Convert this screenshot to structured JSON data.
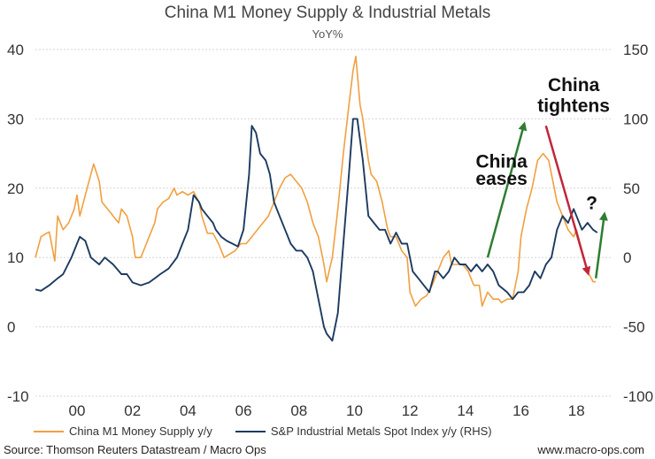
{
  "chart_data": {
    "type": "line",
    "title": "China M1 Money Supply & Industrial Metals",
    "subtitle": "YoY%",
    "x_range": [
      1998.5,
      2019.3
    ],
    "x_ticks": [
      {
        "v": 2000,
        "label": "00"
      },
      {
        "v": 2002,
        "label": "02"
      },
      {
        "v": 2004,
        "label": "04"
      },
      {
        "v": 2006,
        "label": "06"
      },
      {
        "v": 2008,
        "label": "08"
      },
      {
        "v": 2010,
        "label": "10"
      },
      {
        "v": 2012,
        "label": "12"
      },
      {
        "v": 2014,
        "label": "14"
      },
      {
        "v": 2016,
        "label": "16"
      },
      {
        "v": 2018,
        "label": "18"
      }
    ],
    "y_left": {
      "range": [
        -10,
        40
      ],
      "ticks": [
        -10,
        0,
        10,
        20,
        30,
        40
      ]
    },
    "y_right": {
      "range": [
        -100,
        150
      ],
      "ticks": [
        -100,
        -50,
        0,
        50,
        100,
        150
      ]
    },
    "series": [
      {
        "name": "China M1 Money Supply y/y",
        "axis": "left",
        "color": "#f0a040",
        "points": [
          [
            1998.5,
            10
          ],
          [
            1998.7,
            13
          ],
          [
            1998.9,
            13.5
          ],
          [
            1999.0,
            13.7
          ],
          [
            1999.2,
            9.5
          ],
          [
            1999.3,
            16
          ],
          [
            1999.5,
            14
          ],
          [
            1999.7,
            15
          ],
          [
            1999.9,
            17
          ],
          [
            2000.0,
            19
          ],
          [
            2000.1,
            16
          ],
          [
            2000.3,
            19
          ],
          [
            2000.5,
            22
          ],
          [
            2000.6,
            23.5
          ],
          [
            2000.8,
            21
          ],
          [
            2000.9,
            18
          ],
          [
            2001.1,
            17
          ],
          [
            2001.3,
            16
          ],
          [
            2001.5,
            15
          ],
          [
            2001.6,
            17
          ],
          [
            2001.8,
            16
          ],
          [
            2002.0,
            13
          ],
          [
            2002.1,
            10
          ],
          [
            2002.3,
            10
          ],
          [
            2002.5,
            12
          ],
          [
            2002.6,
            13
          ],
          [
            2002.8,
            15
          ],
          [
            2002.9,
            17
          ],
          [
            2003.1,
            18
          ],
          [
            2003.3,
            18.5
          ],
          [
            2003.5,
            20
          ],
          [
            2003.6,
            19
          ],
          [
            2003.8,
            19.5
          ],
          [
            2004.0,
            19
          ],
          [
            2004.2,
            19.5
          ],
          [
            2004.4,
            18
          ],
          [
            2004.5,
            16
          ],
          [
            2004.7,
            13.5
          ],
          [
            2004.9,
            13.5
          ],
          [
            2005.1,
            12
          ],
          [
            2005.3,
            10
          ],
          [
            2005.5,
            10.5
          ],
          [
            2005.7,
            11
          ],
          [
            2005.9,
            12
          ],
          [
            2006.1,
            12
          ],
          [
            2006.3,
            13
          ],
          [
            2006.5,
            14
          ],
          [
            2006.7,
            15
          ],
          [
            2006.9,
            16
          ],
          [
            2007.1,
            18
          ],
          [
            2007.3,
            20
          ],
          [
            2007.5,
            21.5
          ],
          [
            2007.7,
            22
          ],
          [
            2007.9,
            21
          ],
          [
            2008.1,
            20
          ],
          [
            2008.3,
            18
          ],
          [
            2008.5,
            15
          ],
          [
            2008.7,
            13
          ],
          [
            2008.9,
            9
          ],
          [
            2009.0,
            6.5
          ],
          [
            2009.2,
            10
          ],
          [
            2009.4,
            17
          ],
          [
            2009.6,
            25
          ],
          [
            2009.8,
            32
          ],
          [
            2009.95,
            37
          ],
          [
            2010.05,
            39
          ],
          [
            2010.2,
            32
          ],
          [
            2010.3,
            30
          ],
          [
            2010.5,
            24
          ],
          [
            2010.6,
            22
          ],
          [
            2010.8,
            21
          ],
          [
            2011.0,
            18
          ],
          [
            2011.2,
            14
          ],
          [
            2011.3,
            13
          ],
          [
            2011.5,
            13
          ],
          [
            2011.7,
            11
          ],
          [
            2011.9,
            10
          ],
          [
            2012.0,
            5
          ],
          [
            2012.2,
            3
          ],
          [
            2012.4,
            4
          ],
          [
            2012.6,
            4.5
          ],
          [
            2012.8,
            6
          ],
          [
            2013.0,
            8
          ],
          [
            2013.2,
            10
          ],
          [
            2013.4,
            11
          ],
          [
            2013.5,
            9
          ],
          [
            2013.7,
            9
          ],
          [
            2013.9,
            9
          ],
          [
            2014.1,
            8
          ],
          [
            2014.3,
            6
          ],
          [
            2014.5,
            6
          ],
          [
            2014.6,
            3
          ],
          [
            2014.8,
            5
          ],
          [
            2015.0,
            4
          ],
          [
            2015.2,
            4
          ],
          [
            2015.3,
            3.5
          ],
          [
            2015.5,
            4
          ],
          [
            2015.7,
            4
          ],
          [
            2015.9,
            8
          ],
          [
            2016.0,
            13
          ],
          [
            2016.2,
            17
          ],
          [
            2016.4,
            20
          ],
          [
            2016.5,
            22
          ],
          [
            2016.6,
            24
          ],
          [
            2016.8,
            25
          ],
          [
            2017.0,
            24
          ],
          [
            2017.2,
            20
          ],
          [
            2017.3,
            18
          ],
          [
            2017.5,
            16
          ],
          [
            2017.7,
            14
          ],
          [
            2017.9,
            13
          ],
          [
            2018.0,
            14
          ],
          [
            2018.2,
            11
          ],
          [
            2018.4,
            8
          ],
          [
            2018.6,
            6.5
          ],
          [
            2018.7,
            6.5
          ]
        ]
      },
      {
        "name": "S&P Industrial Metals Spot Index y/y (RHS)",
        "axis": "right",
        "color": "#1c3a60",
        "points": [
          [
            1998.5,
            -23
          ],
          [
            1998.7,
            -24
          ],
          [
            1999.0,
            -20
          ],
          [
            1999.3,
            -15
          ],
          [
            1999.5,
            -12
          ],
          [
            1999.8,
            0
          ],
          [
            2000.0,
            10
          ],
          [
            2000.1,
            15
          ],
          [
            2000.3,
            12
          ],
          [
            2000.5,
            0
          ],
          [
            2000.8,
            -5
          ],
          [
            2001.0,
            0
          ],
          [
            2001.3,
            -5
          ],
          [
            2001.6,
            -12
          ],
          [
            2001.8,
            -12
          ],
          [
            2002.0,
            -18
          ],
          [
            2002.3,
            -20
          ],
          [
            2002.6,
            -18
          ],
          [
            2002.8,
            -15
          ],
          [
            2003.0,
            -12
          ],
          [
            2003.3,
            -8
          ],
          [
            2003.6,
            0
          ],
          [
            2003.8,
            10
          ],
          [
            2004.0,
            20
          ],
          [
            2004.2,
            45
          ],
          [
            2004.4,
            40
          ],
          [
            2004.5,
            35
          ],
          [
            2004.7,
            30
          ],
          [
            2004.9,
            25
          ],
          [
            2005.0,
            20
          ],
          [
            2005.2,
            15
          ],
          [
            2005.4,
            12
          ],
          [
            2005.6,
            10
          ],
          [
            2005.8,
            8
          ],
          [
            2006.0,
            20
          ],
          [
            2006.2,
            60
          ],
          [
            2006.3,
            95
          ],
          [
            2006.45,
            90
          ],
          [
            2006.6,
            75
          ],
          [
            2006.8,
            70
          ],
          [
            2006.95,
            60
          ],
          [
            2007.1,
            40
          ],
          [
            2007.3,
            30
          ],
          [
            2007.5,
            20
          ],
          [
            2007.7,
            10
          ],
          [
            2007.9,
            5
          ],
          [
            2008.1,
            5
          ],
          [
            2008.3,
            0
          ],
          [
            2008.5,
            -10
          ],
          [
            2008.7,
            -30
          ],
          [
            2008.9,
            -50
          ],
          [
            2009.0,
            -55
          ],
          [
            2009.2,
            -60
          ],
          [
            2009.4,
            -40
          ],
          [
            2009.6,
            10
          ],
          [
            2009.8,
            60
          ],
          [
            2009.95,
            100
          ],
          [
            2010.1,
            100
          ],
          [
            2010.3,
            70
          ],
          [
            2010.5,
            30
          ],
          [
            2010.7,
            25
          ],
          [
            2010.9,
            20
          ],
          [
            2011.1,
            20
          ],
          [
            2011.3,
            10
          ],
          [
            2011.5,
            18
          ],
          [
            2011.7,
            10
          ],
          [
            2011.9,
            10
          ],
          [
            2012.1,
            -10
          ],
          [
            2012.3,
            -15
          ],
          [
            2012.5,
            -20
          ],
          [
            2012.7,
            -25
          ],
          [
            2012.9,
            -10
          ],
          [
            2013.0,
            -10
          ],
          [
            2013.2,
            -15
          ],
          [
            2013.4,
            -10
          ],
          [
            2013.6,
            0
          ],
          [
            2013.8,
            -5
          ],
          [
            2014.0,
            -5
          ],
          [
            2014.2,
            -10
          ],
          [
            2014.4,
            -5
          ],
          [
            2014.6,
            -10
          ],
          [
            2014.8,
            -5
          ],
          [
            2015.0,
            -10
          ],
          [
            2015.2,
            -20
          ],
          [
            2015.5,
            -25
          ],
          [
            2015.7,
            -30
          ],
          [
            2015.9,
            -25
          ],
          [
            2016.1,
            -25
          ],
          [
            2016.3,
            -20
          ],
          [
            2016.5,
            -10
          ],
          [
            2016.7,
            -15
          ],
          [
            2016.9,
            -5
          ],
          [
            2017.1,
            0
          ],
          [
            2017.3,
            20
          ],
          [
            2017.5,
            30
          ],
          [
            2017.7,
            25
          ],
          [
            2017.9,
            35
          ],
          [
            2018.0,
            30
          ],
          [
            2018.2,
            20
          ],
          [
            2018.4,
            25
          ],
          [
            2018.6,
            20
          ],
          [
            2018.75,
            18
          ]
        ]
      }
    ],
    "annotations": [
      {
        "lines": [
          "China",
          "eases"
        ],
        "x": 2015.3,
        "y": 23,
        "y_line2": 20.5
      },
      {
        "lines": [
          "China",
          "tightens"
        ],
        "x": 2017.9,
        "y": 34,
        "y_line2": 31
      },
      {
        "lines": [
          "?"
        ],
        "x": 2018.55,
        "y": 17,
        "y_line2": 17
      }
    ],
    "arrows": [
      {
        "name": "eases-arrow",
        "color": "#2e7d32",
        "from": [
          2014.8,
          10
        ],
        "to": [
          2016.1,
          29
        ]
      },
      {
        "name": "tightens-arrow",
        "color": "#c0273a",
        "from": [
          2016.9,
          29
        ],
        "to": [
          2018.4,
          8
        ]
      },
      {
        "name": "rebound-arrow",
        "color": "#2e7d32",
        "from": [
          2018.7,
          7
        ],
        "to": [
          2019.0,
          16
        ]
      }
    ]
  },
  "legend": {
    "m1_label": "China M1 Money Supply y/y",
    "metals_label": "S&P Industrial Metals Spot Index y/y (RHS)",
    "m1_color": "#f0a040",
    "metals_color": "#1c3a60"
  },
  "footer": {
    "source": "Source: Thomson Reuters Datastream / Macro Ops",
    "site": "www.macro-ops.com"
  }
}
